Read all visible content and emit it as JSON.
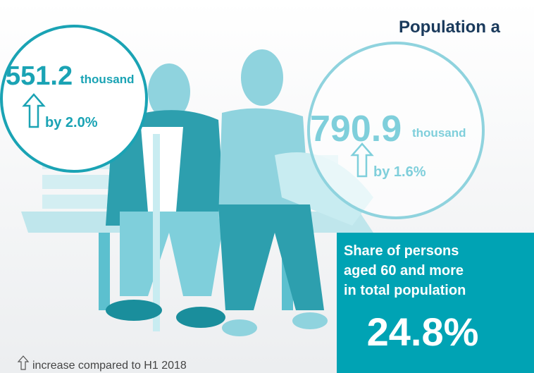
{
  "title": "Population a",
  "men": {
    "value": "551.2",
    "unit": "thousand",
    "change": "by 2.0%"
  },
  "women": {
    "value": "790.9",
    "unit": "thousand",
    "change": "by 1.6%"
  },
  "share": {
    "label_lines": [
      "Share of persons",
      "aged 60 and more",
      "in total population"
    ],
    "value": "24.8%"
  },
  "footnote": "increase compared to H1 2018"
}
